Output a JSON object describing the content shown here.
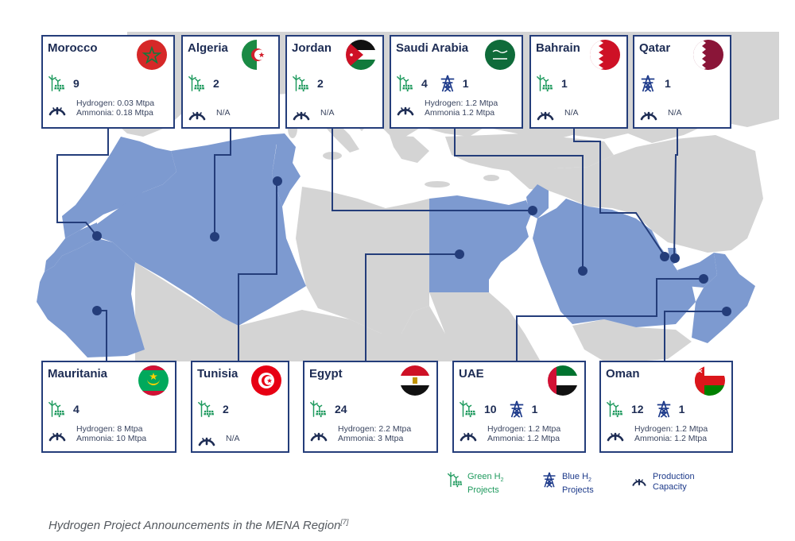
{
  "colors": {
    "highlight": "#7d9ad0",
    "land": "#d4d4d4",
    "frame": "#243d7a",
    "green": "#1f9a5e",
    "blue": "#1d3a8a"
  },
  "icons": {
    "green": "wind-solar-icon",
    "blue": "transmission-tower-icon",
    "capacity": "gauge-icon"
  },
  "cards": {
    "morocco": {
      "name": "Morocco",
      "green": "9",
      "cap": [
        "Hydrogen: 0.03 Mtpa",
        "Ammonia: 0.18 Mtpa"
      ]
    },
    "algeria": {
      "name": "Algeria",
      "green": "2",
      "na": "N/A"
    },
    "jordan": {
      "name": "Jordan",
      "green": "2",
      "na": "N/A"
    },
    "saudi": {
      "name": "Saudi Arabia",
      "green": "4",
      "blue": "1",
      "cap": [
        "Hydrogen: 1.2 Mtpa",
        "Ammonia  1.2 Mtpa"
      ]
    },
    "bahrain": {
      "name": "Bahrain",
      "green": "1",
      "na": "N/A"
    },
    "qatar": {
      "name": "Qatar",
      "blue": "1",
      "na": "N/A"
    },
    "mauritania": {
      "name": "Mauritania",
      "green": "4",
      "cap": [
        "Hydrogen: 8 Mtpa",
        "Ammonia: 10 Mtpa"
      ]
    },
    "tunisia": {
      "name": "Tunisia",
      "green": "2",
      "na": "N/A"
    },
    "egypt": {
      "name": "Egypt",
      "green": "24",
      "cap": [
        "Hydrogen: 2.2 Mtpa",
        "Ammonia: 3 Mtpa"
      ]
    },
    "uae": {
      "name": "UAE",
      "green": "10",
      "blue": "1",
      "cap": [
        "Hydrogen: 1.2 Mtpa",
        "Ammonia: 1.2 Mtpa"
      ]
    },
    "oman": {
      "name": "Oman",
      "green": "12",
      "blue": "1",
      "cap": [
        "Hydrogen: 1.2 Mtpa",
        "Ammonia: 1.2 Mtpa"
      ]
    }
  },
  "legend": {
    "green": {
      "line1": "Green H",
      "sub": "2",
      "line2": "Projects"
    },
    "blue": {
      "line1": "Blue H",
      "sub": "2",
      "line2": "Projects"
    },
    "capacity": {
      "line1": "Production",
      "line2": "Capacity"
    }
  },
  "caption": {
    "text": "Hydrogen Project Announcements in the MENA Region",
    "ref": "[7]"
  }
}
